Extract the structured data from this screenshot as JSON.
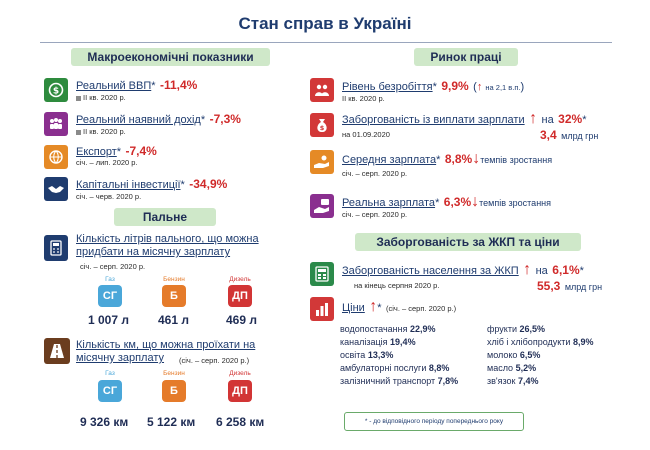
{
  "title": "Стан справ в Україні",
  "macro": {
    "header": "Макроекономічні показники",
    "items": [
      {
        "label": "Реальний ВВП",
        "star": "*",
        "value": "-11,4%",
        "period": "ІІ кв. 2020 р."
      },
      {
        "label": "Реальний наявний дохід",
        "star": "*",
        "value": "-7,3%",
        "period": "ІІ кв. 2020 р."
      },
      {
        "label": "Експорт",
        "star": "*",
        "value": "-7,4%",
        "period": "січ. – лип. 2020 р."
      },
      {
        "label": "Капітальні інвестиції",
        "star": "*",
        "value": "-34,9%",
        "period": "січ. – черв. 2020 р."
      }
    ]
  },
  "fuel": {
    "header": "Пальне",
    "liters": {
      "label": "Кількість літрів пального, що можна придбати на місячну зарплату",
      "period": "січ. – серп. 2020 р.",
      "types": [
        {
          "cap": "Газ",
          "abbr": "СГ",
          "value": "1 007 л"
        },
        {
          "cap": "Бензин",
          "abbr": "Б",
          "value": "461 л"
        },
        {
          "cap": "Дизель",
          "abbr": "ДП",
          "value": "469 л"
        }
      ]
    },
    "km": {
      "label": "Кількість км, що можна проїхати на місячну зарплату",
      "period": "(січ. – серп. 2020 р.)",
      "types": [
        {
          "cap": "Газ",
          "abbr": "СГ",
          "value": "9 326 км"
        },
        {
          "cap": "Бензин",
          "abbr": "Б",
          "value": "5 122 км"
        },
        {
          "cap": "Дизель",
          "abbr": "ДП",
          "value": "6 258 км"
        }
      ]
    }
  },
  "labor": {
    "header": "Ринок праці",
    "unemployment": {
      "label": "Рівень безробіття",
      "star": "*",
      "value": "9,9%",
      "arrow": "↑",
      "change": "на 2,1 в.п.",
      "period": "ІІ кв. 2020 р."
    },
    "arrears": {
      "label": "Заборгованість із виплати зарплати",
      "arrow": "↑",
      "change": "на",
      "value": "32%",
      "star": "*",
      "period": "на 01.09.2020",
      "amount": "3,4",
      "unit": "млрд грн"
    },
    "avg_salary": {
      "label": "Середня зарплата",
      "star": "*",
      "value": "8,8%",
      "arrow": "↓",
      "note": "темпів зростання",
      "period": "січ. – серп. 2020 р."
    },
    "real_salary": {
      "label": "Реальна зарплата",
      "star": "*",
      "value": "6,3%",
      "arrow": "↓",
      "note": "темпів зростання",
      "period": "січ. – серп. 2020 р."
    }
  },
  "utilities": {
    "header": "Заборгованість за ЖКП та ціни",
    "debt": {
      "label": "Заборгованість населення за ЖКП",
      "arrow": "↑",
      "change": "на",
      "value": "6,1%",
      "star": "*",
      "period": "на кінець серпня 2020 р.",
      "amount": "55,3",
      "unit": "млрд грн"
    },
    "prices": {
      "label": "Ціни",
      "arrow": "↑",
      "star": "*",
      "period": "(січ. – серп. 2020 р.)"
    },
    "left_items": [
      {
        "name": "водопостачання",
        "value": "22,9%"
      },
      {
        "name": "каналізація",
        "value": "19,4%"
      },
      {
        "name": "освіта",
        "value": "13,3%"
      },
      {
        "name": "амбулаторні послуги",
        "value": "8,8%"
      },
      {
        "name": "залізничний транспорт",
        "value": "7,8%"
      }
    ],
    "right_items": [
      {
        "name": "фрукти",
        "value": "26,5%"
      },
      {
        "name": "хліб і хлібопродукти",
        "value": "8,9%"
      },
      {
        "name": "молоко",
        "value": "6,5%"
      },
      {
        "name": "масло",
        "value": "5,2%"
      },
      {
        "name": "зв'язок",
        "value": "7,4%"
      }
    ]
  },
  "footnote": "* - до відповідного періоду попереднього року"
}
